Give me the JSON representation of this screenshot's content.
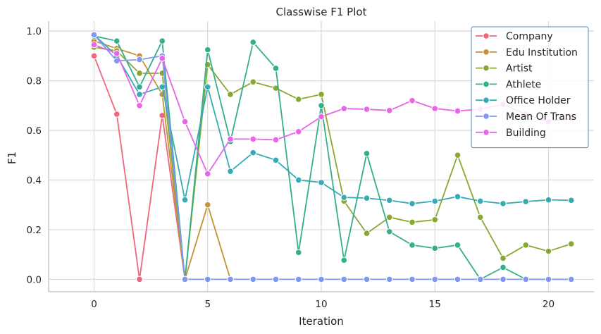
{
  "chart_data": {
    "type": "line",
    "title": "Classwise F1 Plot",
    "xlabel": "Iteration",
    "ylabel": "F1",
    "xlim": [
      -2,
      22
    ],
    "ylim": [
      -0.05,
      1.04
    ],
    "xticks": [
      0,
      5,
      10,
      15,
      20
    ],
    "yticks": [
      0.0,
      0.2,
      0.4,
      0.6,
      0.8,
      1.0
    ],
    "xtick_labels": [
      "0",
      "5",
      "10",
      "15",
      "20"
    ],
    "ytick_labels": [
      "0.0",
      "0.2",
      "0.4",
      "0.6",
      "0.8",
      "1.0"
    ],
    "grid": true,
    "legend_position": "top-right",
    "x": [
      0,
      1,
      2,
      3,
      4,
      5,
      6,
      7,
      8,
      9,
      10,
      11,
      12,
      13,
      14,
      15,
      16,
      17,
      18,
      19,
      20,
      21
    ],
    "series": [
      {
        "name": "Company",
        "color": "#f0677d",
        "x": [
          0,
          1,
          2,
          3,
          4
        ],
        "values": [
          0.9,
          0.665,
          0.0,
          0.66,
          0.0
        ]
      },
      {
        "name": "Edu Institution",
        "color": "#c39436",
        "x": [
          0,
          1,
          2,
          3,
          4,
          5,
          6
        ],
        "values": [
          0.96,
          0.93,
          0.9,
          0.745,
          0.0,
          0.3,
          0.0
        ]
      },
      {
        "name": "Artist",
        "color": "#88a832",
        "x": [
          0,
          1,
          2,
          3,
          4,
          5,
          6,
          7,
          8,
          9,
          10,
          11,
          12,
          13,
          14,
          15,
          16,
          17,
          18,
          19,
          20,
          21
        ],
        "values": [
          0.935,
          0.92,
          0.83,
          0.83,
          0.0,
          0.865,
          0.745,
          0.795,
          0.77,
          0.725,
          0.745,
          0.315,
          0.185,
          0.25,
          0.23,
          0.24,
          0.5,
          0.25,
          0.085,
          0.138,
          0.113,
          0.143
        ]
      },
      {
        "name": "Athlete",
        "color": "#34ae8c",
        "x": [
          0,
          1,
          2,
          3,
          4,
          5,
          6,
          7,
          8,
          9,
          10,
          11,
          12,
          13,
          14,
          15,
          16,
          17,
          18,
          19,
          20,
          21
        ],
        "values": [
          0.98,
          0.96,
          0.775,
          0.96,
          0.0,
          0.925,
          0.555,
          0.955,
          0.85,
          0.108,
          0.7,
          0.077,
          0.507,
          0.192,
          0.138,
          0.125,
          0.138,
          0.0,
          0.048,
          0.0,
          0.0,
          0.0
        ]
      },
      {
        "name": "Office Holder",
        "color": "#37abb5",
        "x": [
          0,
          1,
          2,
          3,
          4,
          5,
          6,
          7,
          8,
          9,
          10,
          11,
          12,
          13,
          14,
          15,
          16,
          17,
          18,
          19,
          20,
          21
        ],
        "values": [
          0.985,
          0.9,
          0.745,
          0.775,
          0.32,
          0.775,
          0.435,
          0.51,
          0.48,
          0.4,
          0.39,
          0.33,
          0.327,
          0.318,
          0.305,
          0.315,
          0.333,
          0.315,
          0.305,
          0.313,
          0.32,
          0.318
        ]
      },
      {
        "name": "Mean Of Trans",
        "color": "#8497f0",
        "x": [
          0,
          1,
          2,
          3,
          4,
          5,
          6,
          7,
          8,
          9,
          10,
          11,
          12,
          13,
          14,
          15,
          16,
          17,
          18,
          19,
          20,
          21
        ],
        "values": [
          0.985,
          0.88,
          0.885,
          0.9,
          0.0,
          0.0,
          0.0,
          0.0,
          0.0,
          0.0,
          0.0,
          0.0,
          0.0,
          0.0,
          0.0,
          0.0,
          0.0,
          0.0,
          0.0,
          0.0,
          0.0,
          0.0
        ]
      },
      {
        "name": "Building",
        "color": "#e865e8",
        "x": [
          0,
          1,
          2,
          3,
          4,
          5,
          6,
          7,
          8,
          9,
          10,
          11,
          12,
          13,
          14,
          15,
          16,
          17,
          18,
          19,
          20,
          21
        ],
        "values": [
          0.945,
          0.91,
          0.7,
          0.89,
          0.635,
          0.425,
          0.565,
          0.565,
          0.562,
          0.595,
          0.655,
          0.688,
          0.685,
          0.68,
          0.72,
          0.688,
          0.678,
          0.685,
          0.705,
          0.665,
          0.635,
          0.648
        ]
      }
    ]
  }
}
